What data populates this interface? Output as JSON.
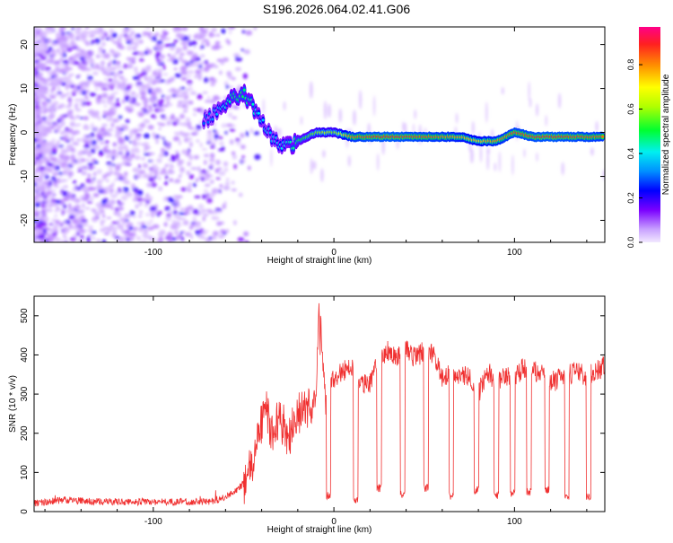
{
  "title": "S196.2026.064.02.41.G06",
  "chart_data": [
    {
      "type": "heatmap",
      "xlabel": "Height of straight line (km)",
      "ylabel": "Frequency (Hz)",
      "xlim": [
        -166,
        150
      ],
      "ylim": [
        -25,
        24
      ],
      "xticks": [
        -100,
        0,
        100
      ],
      "xtick_labels": [
        "-100",
        "0",
        "100"
      ],
      "yticks": [
        -20,
        -10,
        0,
        10,
        20
      ],
      "ytick_labels": [
        "-20",
        "-10",
        "0",
        "10",
        "20"
      ],
      "colorbar": {
        "label": "Normalized spectral amplitude",
        "range": [
          0,
          0.97
        ],
        "ticks": [
          0,
          0.2,
          0.4,
          0.6,
          0.8
        ],
        "tick_labels": [
          "0.0",
          "0.2",
          "0.4",
          "0.6",
          "0.8"
        ]
      },
      "ridge": {
        "x": [
          -70,
          -62,
          -55,
          -50,
          -45,
          -40,
          -35,
          -30,
          -25,
          -20,
          -15,
          -10,
          -5,
          0,
          10,
          20,
          30,
          40,
          50,
          60,
          70,
          80,
          85,
          90,
          95,
          100,
          110,
          120,
          130,
          140,
          148
        ],
        "frequency": [
          3,
          6,
          8,
          9,
          6,
          3,
          -1,
          -3,
          -3,
          -2,
          -1,
          0,
          0,
          0,
          -1,
          -1,
          -1,
          -1,
          -1,
          -1,
          -1,
          -2,
          -2,
          -2,
          -1,
          0,
          -1,
          -1,
          -1,
          -1,
          -1
        ],
        "peak_amplitude": [
          0.3,
          0.4,
          0.5,
          0.5,
          0.45,
          0.4,
          0.35,
          0.4,
          0.45,
          0.5,
          0.55,
          0.6,
          0.65,
          0.6,
          0.85,
          0.9,
          0.92,
          0.9,
          0.88,
          0.85,
          0.8,
          0.75,
          0.8,
          0.82,
          0.85,
          0.88,
          0.9,
          0.92,
          0.9,
          0.88,
          0.86
        ]
      }
    },
    {
      "type": "line",
      "xlabel": "Height of straight line (km)",
      "ylabel": "SNR (10 * v/v)",
      "xlim": [
        -166,
        150
      ],
      "ylim": [
        0,
        550
      ],
      "xticks": [
        -100,
        0,
        100
      ],
      "xtick_labels": [
        "-100",
        "0",
        "100"
      ],
      "yticks": [
        0,
        100,
        200,
        300,
        400,
        500
      ],
      "ytick_labels": [
        "0",
        "100",
        "200",
        "300",
        "400",
        "500"
      ],
      "color": "#f03030",
      "series": [
        {
          "name": "SNR",
          "x": [
            -166,
            -150,
            -130,
            -110,
            -90,
            -70,
            -60,
            -50,
            -45,
            -40,
            -37,
            -35,
            -30,
            -25,
            -20,
            -15,
            -10,
            -8,
            -5,
            0,
            5,
            10,
            15,
            20,
            25,
            30,
            35,
            40,
            45,
            50,
            55,
            60,
            65,
            70,
            75,
            80,
            85,
            90,
            95,
            100,
            105,
            110,
            115,
            120,
            125,
            130,
            135,
            140,
            145,
            150
          ],
          "values": [
            20,
            30,
            25,
            25,
            25,
            25,
            35,
            70,
            120,
            230,
            260,
            200,
            240,
            190,
            250,
            260,
            290,
            540,
            300,
            340,
            360,
            370,
            320,
            330,
            400,
            410,
            400,
            420,
            390,
            410,
            400,
            340,
            360,
            340,
            350,
            300,
            360,
            330,
            350,
            340,
            370,
            360,
            350,
            330,
            340,
            350,
            360,
            340,
            360,
            370
          ]
        }
      ],
      "dropouts": {
        "x": [
          -3,
          12,
          25,
          38,
          51,
          65,
          79,
          90,
          99,
          108,
          118,
          129,
          141
        ],
        "values": [
          40,
          30,
          60,
          45,
          60,
          40,
          55,
          40,
          45,
          50,
          55,
          40,
          40
        ]
      }
    }
  ]
}
